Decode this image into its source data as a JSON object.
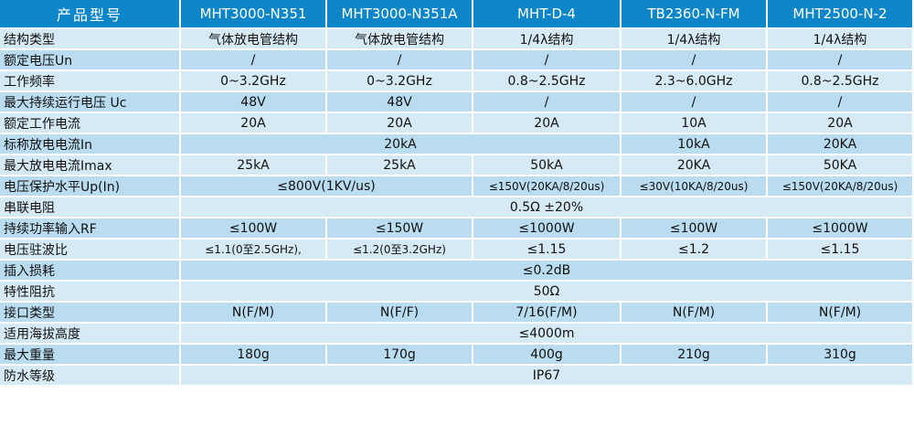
{
  "header": {
    "label": "产品型号",
    "models": [
      "MHT3000-N351",
      "MHT3000-N351A",
      "MHT-D-4",
      "TB2360-N-FM",
      "MHT2500-N-2"
    ]
  },
  "rows": {
    "structure": {
      "label": "结构类型",
      "v1": "气体放电管结构",
      "v2": "气体放电管结构",
      "v3": "1/4λ结构",
      "v4": "1/4λ结构",
      "v5": "1/4λ结构"
    },
    "rated_voltage": {
      "label": "额定电压Un",
      "v1": "/",
      "v2": "/",
      "v3": "/",
      "v4": "/",
      "v5": "/"
    },
    "frequency": {
      "label": "工作频率",
      "v1": "0~3.2GHz",
      "v2": "0~3.2GHz",
      "v3": "0.8~2.5GHz",
      "v4": "2.3~6.0GHz",
      "v5": "0.8~2.5GHz"
    },
    "max_cont_voltage": {
      "label": "最大持续运行电压 Uc",
      "v1": "48V",
      "v2": "48V",
      "v3": "/",
      "v4": "/",
      "v5": "/"
    },
    "rated_current": {
      "label": "额定工作电流",
      "v1": "20A",
      "v2": "20A",
      "v3": "20A",
      "v4": "10A",
      "v5": "20A"
    },
    "nominal_discharge": {
      "label": "标称放电电流In",
      "merged": "20kA",
      "v4": "10kA",
      "v5": "20KA"
    },
    "max_discharge": {
      "label": "最大放电电流Imax",
      "v1": "25kA",
      "v2": "25kA",
      "v3": "50kA",
      "v4": "20KA",
      "v5": "50KA"
    },
    "protection_level": {
      "label": "电压保护水平Up(In)",
      "merged": "≤800V(1KV/us)",
      "v3": "≤150V(20KA/8/20us)",
      "v4": "≤30V(10KA/8/20us)",
      "v5": "≤150V(20KA/8/20us)"
    },
    "series_resistance": {
      "label": "串联电阻",
      "merged": "0.5Ω ±20%"
    },
    "cont_power": {
      "label": "持续功率输入RF",
      "v1": "≤100W",
      "v2": "≤150W",
      "v3": "≤1000W",
      "v4": "≤100W",
      "v5": "≤1000W"
    },
    "vswr": {
      "label": "电压驻波比",
      "v1": "≤1.1(0至2.5GHz),",
      "v2": "≤1.2(0至3.2GHz)",
      "v3": "≤1.15",
      "v4": "≤1.2",
      "v5": "≤1.15"
    },
    "insertion_loss": {
      "label": "插入损耗",
      "merged": "≤0.2dB"
    },
    "impedance": {
      "label": "特性阻抗",
      "merged": "50Ω"
    },
    "connector": {
      "label": "接口类型",
      "v1": "N(F/M)",
      "v2": "N(F/F)",
      "v3": "7/16(F/M)",
      "v4": "N(F/M)",
      "v5": "N(F/M)"
    },
    "altitude": {
      "label": "适用海拔高度",
      "merged": "≤4000m"
    },
    "max_weight": {
      "label": "最大重量",
      "v1": "180g",
      "v2": "170g",
      "v3": "400g",
      "v4": "210g",
      "v5": "310g"
    },
    "waterproof": {
      "label": "防水等级",
      "merged": "IP67"
    }
  },
  "colors": {
    "header": "#0c86c8",
    "row_light": "#d6eaf6",
    "row_dark": "#b9dcf0"
  }
}
